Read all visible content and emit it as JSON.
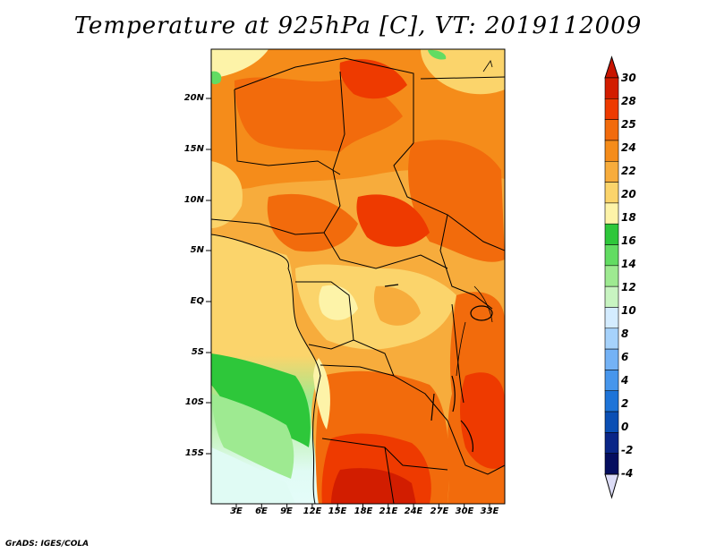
{
  "title": "Temperature at 925hPa [C], VT: 2019112009",
  "credit": "GrADS: IGES/COLA",
  "map": {
    "variable": "Temperature at 925hPa",
    "units": "C",
    "valid_time": "2019112009",
    "lat_ticks": [
      "20N",
      "15N",
      "10N",
      "5N",
      "EQ",
      "5S",
      "10S",
      "15S"
    ],
    "lon_ticks": [
      "3E",
      "6E",
      "9E",
      "12E",
      "15E",
      "18E",
      "21E",
      "24E",
      "27E",
      "30E",
      "33E"
    ]
  },
  "colorbar": {
    "labels": [
      "30",
      "28",
      "25",
      "24",
      "22",
      "20",
      "18",
      "16",
      "14",
      "12",
      "10",
      "8",
      "6",
      "4",
      "2",
      "0",
      "-2",
      "-4"
    ],
    "colors": [
      "#d21d00",
      "#ee3a00",
      "#f26b0c",
      "#f58c1a",
      "#f7ac3c",
      "#fbd46b",
      "#fdf3a8",
      "#2ec73a",
      "#62dc62",
      "#9eea91",
      "#c8f4c1",
      "#d4ecff",
      "#a6d2fb",
      "#74b2f5",
      "#4796ec",
      "#1e74d8",
      "#0b4fb4",
      "#0a2687",
      "#050e5f"
    ],
    "end_colors": {
      "top": "#c81400",
      "bottom": "#dcdcf6"
    }
  }
}
